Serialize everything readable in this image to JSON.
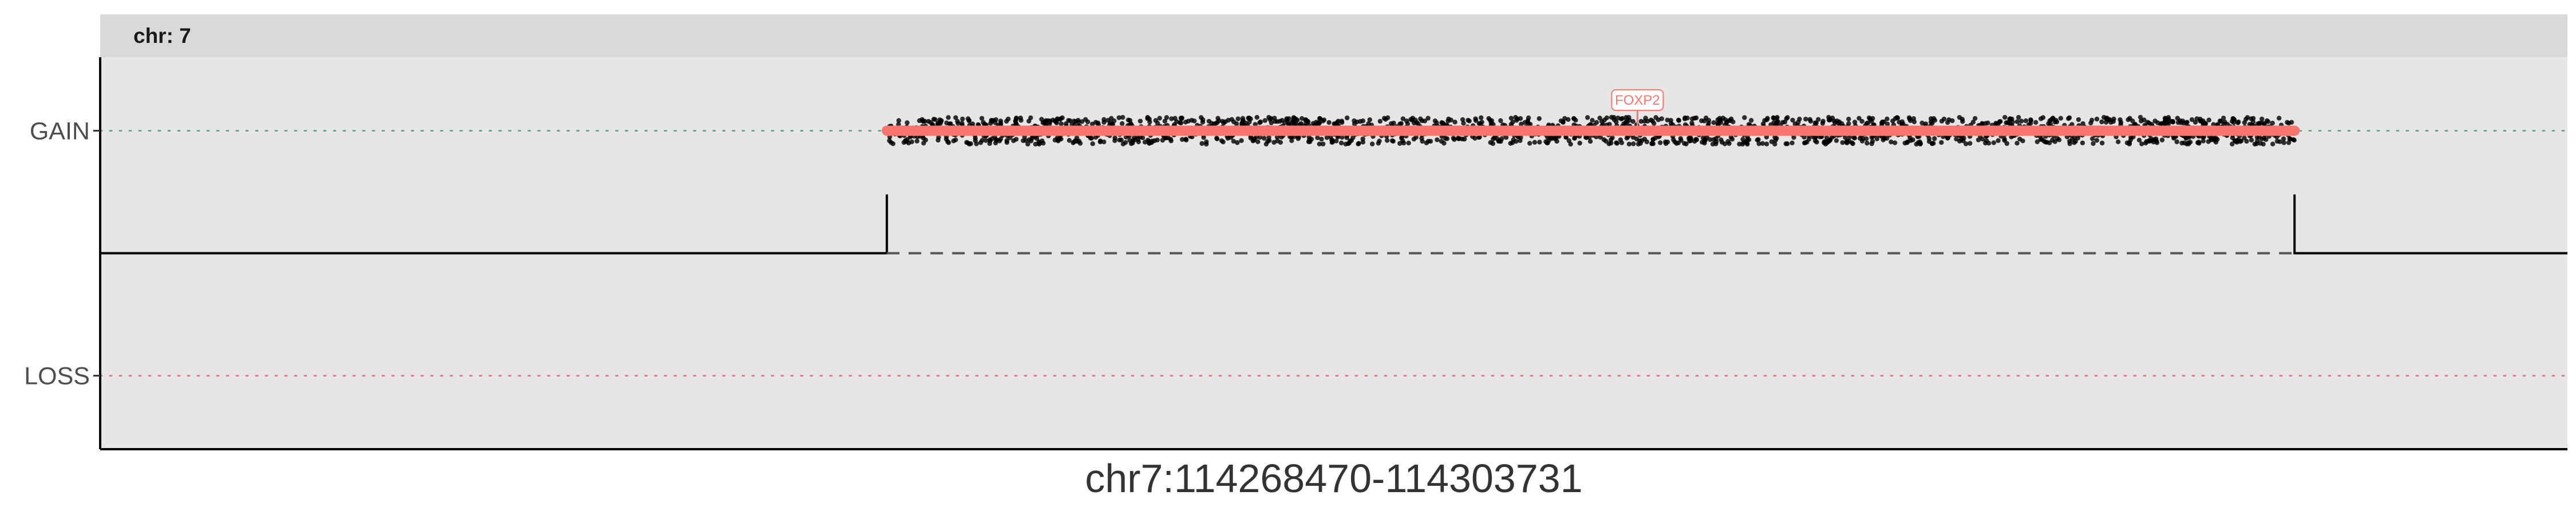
{
  "chart_data": {
    "type": "scatter",
    "strip_label": "chr: 7",
    "xlabel": "chr7:114268470-114303731",
    "ylabel": "",
    "xlim": [
      114268470,
      114303731
    ],
    "y_levels": [
      "LOSS",
      "GAIN"
    ],
    "ylim": [
      -1.6,
      1.6
    ],
    "reference_lines": [
      {
        "label": "GAIN",
        "y": 1,
        "style": "dotted",
        "color": "#66a89a"
      },
      {
        "label": "LOSS",
        "y": -1,
        "style": "dotted",
        "color": "#e07a86"
      }
    ],
    "segment": {
      "start": 114279713,
      "end": 114299831,
      "value": 1,
      "color": "#f8766d"
    },
    "cn_step": {
      "baseline": 0,
      "gain_start": 114279713,
      "gain_end": 114299831,
      "height": 0.48
    },
    "points": {
      "count": 2000,
      "y_center": 1,
      "y_spread": 0.11,
      "color": "#000000"
    },
    "gene_labels": [
      {
        "name": "FOXP2",
        "x": 114290440,
        "y": 1.25
      }
    ],
    "grid": false,
    "colors": {
      "panel_bg": "#e6e6e6",
      "strip_bg": "#d9d9d9"
    }
  }
}
